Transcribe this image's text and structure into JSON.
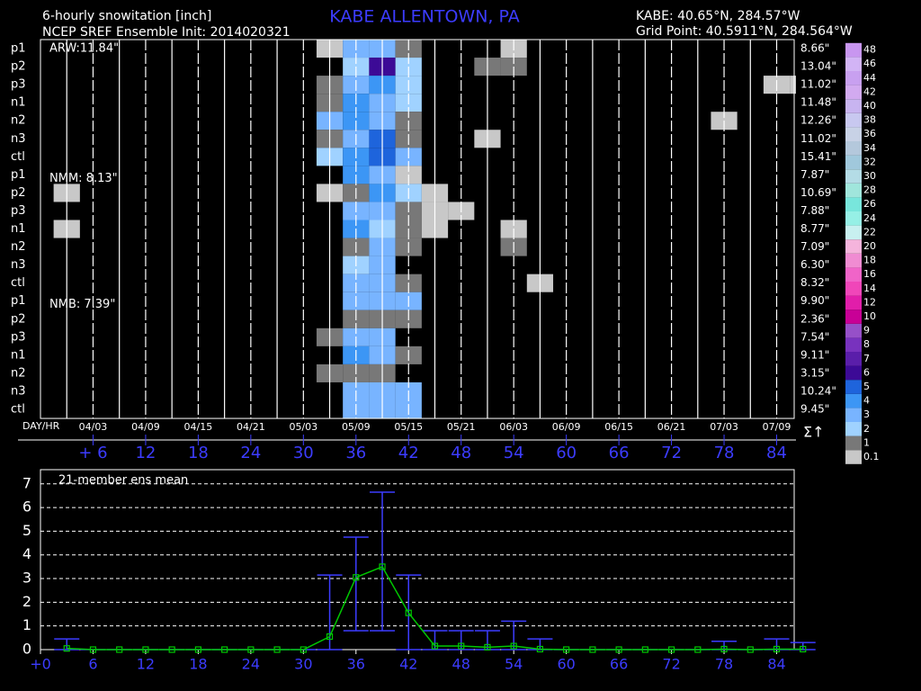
{
  "chart_data": [
    {
      "type": "heatmap",
      "title": "6-hourly snowitation [inch]",
      "subtitle": "NCEP SREF Ensemble Init: 2014020321",
      "station": "KABE ALLENTOWN, PA",
      "station_coords": "KABE: 40.65°N, 284.57°W",
      "grid_point": "Grid Point: 40.5911°N, 284.564°W",
      "day_hr_label": "DAY/HR",
      "sum_label": "Σ↑",
      "rows": [
        "p1",
        "p2",
        "p3",
        "n1",
        "n2",
        "n3",
        "ctl",
        "p1",
        "p2",
        "p3",
        "n1",
        "n2",
        "n3",
        "ctl",
        "p1",
        "p2",
        "p3",
        "n1",
        "n2",
        "n3",
        "ctl"
      ],
      "groups": [
        "ARW:11.84\"",
        "NMM: 8.13\"",
        "NMB: 7.39\""
      ],
      "totals": [
        "8.66\"",
        "13.04\"",
        "11.02\"",
        "11.48\"",
        "12.26\"",
        "11.02\"",
        "15.41\"",
        "7.87\"",
        "10.69\"",
        "7.88\"",
        "8.77\"",
        "7.09\"",
        "6.30\"",
        "8.32\"",
        "9.90\"",
        "2.36\"",
        "7.54\"",
        "9.11\"",
        "3.15\"",
        "10.24\"",
        "9.45\""
      ],
      "x": [
        3,
        6,
        9,
        12,
        15,
        18,
        21,
        24,
        27,
        30,
        33,
        36,
        39,
        42,
        45,
        48,
        51,
        54,
        57,
        60,
        63,
        66,
        69,
        72,
        75,
        78,
        81,
        84,
        87
      ],
      "xlim": [
        0,
        86
      ],
      "xticks": [
        {
          "value": 6,
          "label": "+ 6"
        },
        12,
        18,
        24,
        30,
        36,
        42,
        48,
        54,
        60,
        66,
        72,
        78,
        84
      ],
      "day_labels": [
        "04/03",
        "04/09",
        "04/15",
        "04/21",
        "05/03",
        "05/09",
        "05/15",
        "05/21",
        "06/03",
        "06/09",
        "06/15",
        "06/21",
        "07/03",
        "07/09"
      ],
      "values": [
        [
          0,
          0,
          0,
          0,
          0,
          0,
          0,
          0,
          0,
          0,
          0.5,
          3.5,
          3.5,
          1.2,
          0,
          0,
          0,
          0.5,
          0,
          0,
          0,
          0,
          0,
          0,
          0,
          0,
          0,
          0,
          0
        ],
        [
          0,
          0,
          0,
          0,
          0,
          0,
          0,
          0,
          0,
          0,
          0,
          2.5,
          6.5,
          2.5,
          0,
          0,
          1.2,
          1.8,
          0,
          0,
          0,
          0,
          0,
          0,
          0,
          0,
          0,
          0,
          0
        ],
        [
          0,
          0,
          0,
          0,
          0,
          0,
          0,
          0,
          0,
          0,
          1.2,
          3.5,
          4.5,
          2.5,
          0,
          0,
          0,
          0,
          0,
          0,
          0,
          0,
          0,
          0,
          0,
          0,
          0,
          0.5,
          0.5
        ],
        [
          0,
          0,
          0,
          0,
          0,
          0,
          0,
          0,
          0,
          0,
          1.8,
          4.5,
          3.5,
          2.5,
          0,
          0,
          0,
          0,
          0,
          0,
          0,
          0,
          0,
          0,
          0,
          0,
          0,
          0,
          0
        ],
        [
          0,
          0,
          0,
          0,
          0,
          0,
          0,
          0,
          0,
          0,
          3.5,
          4.5,
          3.5,
          1.8,
          0,
          0,
          0,
          0,
          0,
          0,
          0,
          0,
          0,
          0,
          0,
          0.5,
          0,
          0,
          0
        ],
        [
          0,
          0,
          0,
          0,
          0,
          0,
          0,
          0,
          0,
          0,
          1.8,
          3.5,
          5.5,
          1.8,
          0,
          0,
          0.5,
          0,
          0,
          0,
          0,
          0,
          0,
          0,
          0,
          0,
          0,
          0,
          0
        ],
        [
          0,
          0,
          0,
          0,
          0,
          0,
          0,
          0,
          0,
          0,
          2.5,
          4.5,
          5.5,
          3.5,
          0,
          0,
          0,
          0,
          0,
          0,
          0,
          0,
          0,
          0,
          0,
          0,
          0,
          0,
          0
        ],
        [
          0,
          0,
          0,
          0,
          0,
          0,
          0,
          0,
          0,
          0,
          0,
          4.5,
          3.5,
          0.5,
          0,
          0,
          0,
          0,
          0,
          0,
          0,
          0,
          0,
          0,
          0,
          0,
          0,
          0,
          0
        ],
        [
          0.5,
          0,
          0,
          0,
          0,
          0,
          0,
          0,
          0,
          0,
          0.5,
          1.8,
          4.5,
          2.5,
          0.5,
          0,
          0,
          0,
          0,
          0,
          0,
          0,
          0,
          0,
          0,
          0,
          0,
          0,
          0
        ],
        [
          0,
          0,
          0,
          0,
          0,
          0,
          0,
          0,
          0,
          0,
          0,
          3,
          3,
          1.8,
          0.5,
          0.5,
          0,
          0,
          0,
          0,
          0,
          0,
          0,
          0,
          0,
          0,
          0,
          0,
          0
        ],
        [
          0.5,
          0,
          0,
          0,
          0,
          0,
          0,
          0,
          0,
          0,
          0,
          4.5,
          2.5,
          1.8,
          0.5,
          0,
          0,
          0.5,
          0,
          0,
          0,
          0,
          0,
          0,
          0,
          0,
          0,
          0,
          0
        ],
        [
          0,
          0,
          0,
          0,
          0,
          0,
          0,
          0,
          0,
          0,
          0,
          1.8,
          3.5,
          1.8,
          0,
          0,
          0,
          1.2,
          0,
          0,
          0,
          0,
          0,
          0,
          0,
          0,
          0,
          0,
          0
        ],
        [
          0,
          0,
          0,
          0,
          0,
          0,
          0,
          0,
          0,
          0,
          0,
          2.5,
          3.5,
          0,
          0,
          0,
          0,
          0,
          0,
          0,
          0,
          0,
          0,
          0,
          0,
          0,
          0,
          0,
          0
        ],
        [
          0,
          0,
          0,
          0,
          0,
          0,
          0,
          0,
          0,
          0,
          0,
          3,
          3.5,
          1.8,
          0,
          0,
          0,
          0,
          0.5,
          0,
          0,
          0,
          0,
          0,
          0,
          0,
          0,
          0,
          0
        ],
        [
          0,
          0,
          0,
          0,
          0,
          0,
          0,
          0,
          0,
          0,
          0,
          3,
          3.5,
          3.5,
          0,
          0,
          0,
          0,
          0,
          0,
          0,
          0,
          0,
          0,
          0,
          0,
          0,
          0,
          0
        ],
        [
          0,
          0,
          0,
          0,
          0,
          0,
          0,
          0,
          0,
          0,
          0,
          1.2,
          1.2,
          1.2,
          0,
          0,
          0,
          0,
          0,
          0,
          0,
          0,
          0,
          0,
          0,
          0,
          0,
          0,
          0
        ],
        [
          0,
          0,
          0,
          0,
          0,
          0,
          0,
          0,
          0,
          0,
          1.8,
          3.5,
          3.5,
          0,
          0,
          0,
          0,
          0,
          0,
          0,
          0,
          0,
          0,
          0,
          0,
          0,
          0,
          0,
          0
        ],
        [
          0,
          0,
          0,
          0,
          0,
          0,
          0,
          0,
          0,
          0,
          0,
          4,
          3.5,
          1.8,
          0,
          0,
          0,
          0,
          0,
          0,
          0,
          0,
          0,
          0,
          0,
          0,
          0,
          0,
          0
        ],
        [
          0,
          0,
          0,
          0,
          0,
          0,
          0,
          0,
          0,
          0,
          1.2,
          1.2,
          1.8,
          0,
          0,
          0,
          0,
          0,
          0,
          0,
          0,
          0,
          0,
          0,
          0,
          0,
          0,
          0,
          0
        ],
        [
          0,
          0,
          0,
          0,
          0,
          0,
          0,
          0,
          0,
          0,
          0,
          3.5,
          3,
          3,
          0,
          0,
          0,
          0,
          0,
          0,
          0,
          0,
          0,
          0,
          0,
          0,
          0,
          0,
          0
        ],
        [
          0,
          0,
          0,
          0,
          0,
          0,
          0,
          0,
          0,
          0,
          0,
          3.5,
          3,
          3,
          0,
          0,
          0,
          0,
          0,
          0,
          0,
          0,
          0,
          0,
          0,
          0,
          0,
          0,
          0
        ]
      ],
      "colorbar": {
        "levels": [
          0.1,
          1,
          2,
          3,
          4,
          5,
          6,
          7,
          8,
          9,
          10,
          12,
          14,
          16,
          18,
          20,
          22,
          24,
          26,
          28,
          30,
          32,
          34,
          36,
          38,
          40,
          42,
          44,
          46,
          48
        ],
        "colors": [
          "#c8c8c8",
          "#787878",
          "#a0d2ff",
          "#78b4ff",
          "#3c96f5",
          "#1e64dc",
          "#3c0a96",
          "#5a1eaa",
          "#7832be",
          "#9650c8",
          "#c80096",
          "#e11eaa",
          "#f046b9",
          "#f064c8",
          "#f08cd2",
          "#f5b4dc",
          "#c8f0f0",
          "#96f0e6",
          "#78e6dc",
          "#a0e6dc",
          "#b4dce6",
          "#a0c8dc",
          "#b4c8dc",
          "#c8d2e6",
          "#c8c8f0",
          "#c8b4f0",
          "#d2aaf0",
          "#c8a0f0",
          "#d2b4f5",
          "#c896f0"
        ]
      },
      "axis_color": "#3c3cff"
    },
    {
      "type": "line",
      "title": "21-member ens mean",
      "x": [
        3,
        6,
        9,
        12,
        15,
        18,
        21,
        24,
        27,
        30,
        33,
        36,
        39,
        42,
        45,
        48,
        51,
        54,
        57,
        60,
        63,
        66,
        69,
        72,
        75,
        78,
        81,
        84,
        87
      ],
      "values": [
        0.05,
        0,
        0,
        0,
        0,
        0,
        0,
        0,
        0,
        0,
        0.55,
        3.05,
        3.5,
        1.55,
        0.15,
        0.15,
        0.1,
        0.15,
        0.02,
        0,
        0,
        0,
        0,
        0,
        0,
        0.02,
        0,
        0.02,
        0.02
      ],
      "lower": [
        0,
        0,
        0,
        0,
        0,
        0,
        0,
        0,
        0,
        0,
        0,
        0.8,
        0.8,
        0,
        0,
        0,
        0,
        0,
        0,
        0,
        0,
        0,
        0,
        0,
        0,
        0,
        0,
        0,
        0
      ],
      "upper": [
        0.45,
        0,
        0,
        0,
        0,
        0,
        0,
        0,
        0,
        0,
        3.15,
        4.75,
        6.65,
        3.15,
        0.8,
        0.8,
        0.8,
        1.2,
        0.45,
        0,
        0,
        0,
        0,
        0,
        0,
        0.35,
        0,
        0.45,
        0.3
      ],
      "color": "#00c800",
      "error_color": "#3c3cff",
      "xlim": [
        0,
        86
      ],
      "xticks": [
        {
          "value": 0,
          "label": "+0"
        },
        6,
        12,
        18,
        24,
        30,
        36,
        42,
        48,
        54,
        60,
        66,
        72,
        78,
        84
      ],
      "ylim": [
        0,
        7.6
      ],
      "yticks": [
        0,
        1,
        2,
        3,
        4,
        5,
        6,
        7
      ],
      "grid": true
    }
  ]
}
